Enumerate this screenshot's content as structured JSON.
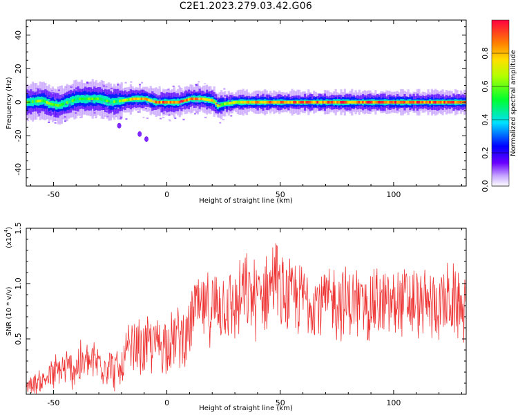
{
  "title": "C2E1.2023.279.03.42.G06",
  "chart_data": [
    {
      "type": "heatmap",
      "xlabel": "Height of straight line (km)",
      "ylabel": "Frequency (Hz)",
      "xlim": [
        -62,
        132
      ],
      "ylim": [
        -50,
        49
      ],
      "xticks": [
        -50,
        0,
        50,
        100
      ],
      "yticks": [
        -40,
        -20,
        0,
        20,
        40
      ],
      "colorbar": {
        "label": "Normalized spectral amplitude",
        "range": [
          0.0,
          1.0
        ],
        "ticks": [
          0.0,
          0.2,
          0.4,
          0.6,
          0.8
        ],
        "tick_labels": [
          "0.0",
          "0.2",
          "0.4",
          "0.6",
          "0.8"
        ]
      },
      "ridge": {
        "height_km": [
          -62,
          -55,
          -52,
          -48,
          -44,
          -40,
          -35,
          -30,
          -25,
          -20,
          -15,
          -10,
          -5,
          0,
          5,
          10,
          15,
          20,
          22,
          25,
          30,
          40,
          60,
          80,
          100,
          120,
          132
        ],
        "frequency_hz": [
          0,
          1,
          -1,
          -2,
          0,
          2,
          2,
          2,
          0,
          1,
          2,
          2,
          0,
          0,
          0,
          2,
          2,
          1,
          -2,
          -1,
          0,
          0,
          0,
          0,
          0,
          0,
          0
        ],
        "peak_amplitude": [
          0.55,
          0.6,
          0.6,
          0.55,
          0.5,
          0.5,
          0.55,
          0.55,
          0.5,
          0.6,
          0.75,
          0.8,
          0.85,
          0.9,
          0.9,
          0.85,
          0.85,
          0.7,
          0.6,
          0.6,
          0.7,
          0.8,
          0.85,
          0.88,
          0.9,
          0.88,
          0.85
        ]
      },
      "outlier_blobs": [
        {
          "height_km": -21,
          "frequency_hz": -14
        },
        {
          "height_km": -12,
          "frequency_hz": -19
        },
        {
          "height_km": -9,
          "frequency_hz": -22
        }
      ]
    },
    {
      "type": "line",
      "xlabel": "Height of straight line (km)",
      "ylabel": "SNR (10 * v/v)",
      "y_multiplier": "(x10",
      "y_multiplier_exp": "4",
      "y_multiplier_close": ")",
      "xlim": [
        -62,
        132
      ],
      "ylim": [
        0,
        15000
      ],
      "xticks": [
        -50,
        0,
        50,
        100
      ],
      "yticks": [
        5000,
        10000,
        15000
      ],
      "ytick_labels": [
        "0.5",
        "1.0",
        "1.5"
      ],
      "series": [
        {
          "color": "#ee3333",
          "x": [
            -62,
            -55,
            -50,
            -45,
            -40,
            -35,
            -30,
            -25,
            -20,
            -18,
            -15,
            -10,
            -5,
            0,
            5,
            10,
            12,
            15,
            20,
            25,
            30,
            35,
            40,
            45,
            47,
            50,
            55,
            60,
            65,
            70,
            75,
            80,
            85,
            90,
            95,
            100,
            105,
            110,
            115,
            120,
            125,
            130,
            132
          ],
          "y": [
            800,
            1200,
            1800,
            2200,
            2500,
            2800,
            3000,
            2500,
            2000,
            3500,
            4000,
            4200,
            4500,
            4800,
            5200,
            5500,
            8000,
            7500,
            7800,
            8200,
            8000,
            9000,
            8800,
            9200,
            11000,
            9000,
            8500,
            8800,
            8600,
            8300,
            8400,
            8200,
            8100,
            8300,
            8000,
            8200,
            8300,
            8100,
            8000,
            8200,
            8300,
            8000,
            8200
          ],
          "y_spread": [
            900,
            1300,
            2000,
            2200,
            2500,
            2400,
            2500,
            2300,
            2000,
            3000,
            3000,
            3200,
            3200,
            3200,
            3300,
            3200,
            3800,
            3700,
            3800,
            4000,
            4000,
            4300,
            4300,
            4300,
            4300,
            4300,
            4000,
            4000,
            4000,
            4000,
            4000,
            4000,
            4000,
            4000,
            4000,
            4000,
            3900,
            3900,
            3900,
            3900,
            3900,
            3900,
            3900
          ]
        }
      ]
    }
  ]
}
